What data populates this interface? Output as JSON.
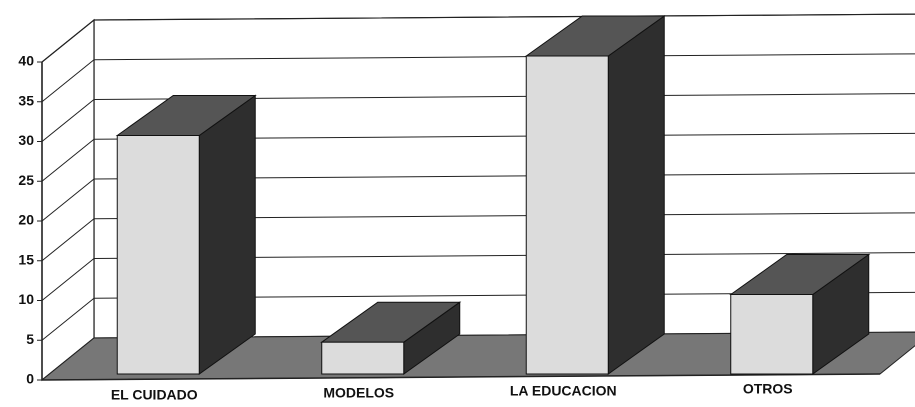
{
  "chart_data": {
    "type": "bar3d",
    "categories": [
      "EL CUIDADO",
      "MODELOS",
      "LA EDUCACION",
      "OTROS"
    ],
    "values": [
      30,
      4,
      40,
      10
    ],
    "ylim": [
      0,
      40
    ],
    "yticks": [
      0,
      5,
      10,
      15,
      20,
      25,
      30,
      35,
      40
    ],
    "grid": true,
    "colors": {
      "front": "#dcdcdc",
      "side": "#2e2e2e",
      "top": "#555555"
    }
  }
}
